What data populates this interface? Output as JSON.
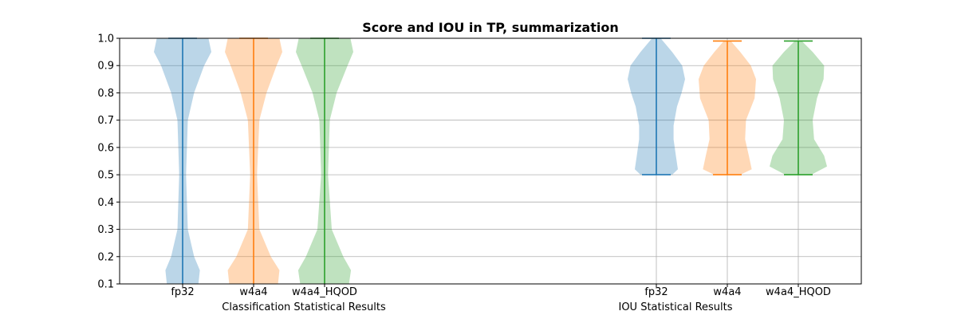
{
  "chart_data": {
    "type": "violin",
    "title": "Score and IOU in TP, summarization",
    "ylim": [
      0.1,
      1.0
    ],
    "yticks": [
      "0.1",
      "0.2",
      "0.3",
      "0.4",
      "0.5",
      "0.6",
      "0.7",
      "0.8",
      "0.9",
      "1.0"
    ],
    "grid": "y",
    "colors": {
      "fp32": "#1f77b4",
      "w4a4": "#ff7f0e",
      "w4a4_HQOD": "#2ca02c"
    },
    "groups": [
      {
        "label": "Classification Statistical Results",
        "violins": [
          {
            "category": "fp32",
            "min": 0.1,
            "max": 1.0,
            "density": [
              [
                0.1,
                0.55
              ],
              [
                0.15,
                0.6
              ],
              [
                0.2,
                0.4
              ],
              [
                0.3,
                0.18
              ],
              [
                0.5,
                0.12
              ],
              [
                0.7,
                0.18
              ],
              [
                0.8,
                0.4
              ],
              [
                0.9,
                0.75
              ],
              [
                0.95,
                1.0
              ],
              [
                1.0,
                0.9
              ]
            ]
          },
          {
            "category": "w4a4",
            "min": 0.1,
            "max": 1.0,
            "density": [
              [
                0.1,
                0.85
              ],
              [
                0.15,
                0.9
              ],
              [
                0.2,
                0.6
              ],
              [
                0.3,
                0.2
              ],
              [
                0.5,
                0.12
              ],
              [
                0.7,
                0.2
              ],
              [
                0.8,
                0.45
              ],
              [
                0.9,
                0.8
              ],
              [
                0.95,
                1.0
              ],
              [
                1.0,
                0.9
              ]
            ]
          },
          {
            "category": "w4a4_HQOD",
            "min": 0.1,
            "max": 1.0,
            "density": [
              [
                0.1,
                0.85
              ],
              [
                0.15,
                0.92
              ],
              [
                0.2,
                0.65
              ],
              [
                0.3,
                0.25
              ],
              [
                0.5,
                0.12
              ],
              [
                0.7,
                0.18
              ],
              [
                0.8,
                0.42
              ],
              [
                0.9,
                0.8
              ],
              [
                0.95,
                1.0
              ],
              [
                1.0,
                0.9
              ]
            ]
          }
        ]
      },
      {
        "label": "IOU Statistical Results",
        "violins": [
          {
            "category": "fp32",
            "min": 0.5,
            "max": 1.0,
            "density": [
              [
                0.5,
                0.55
              ],
              [
                0.52,
                0.75
              ],
              [
                0.57,
                0.68
              ],
              [
                0.63,
                0.6
              ],
              [
                0.68,
                0.6
              ],
              [
                0.75,
                0.72
              ],
              [
                0.8,
                0.88
              ],
              [
                0.85,
                1.0
              ],
              [
                0.9,
                0.9
              ],
              [
                0.95,
                0.55
              ],
              [
                1.0,
                0.15
              ]
            ]
          },
          {
            "category": "w4a4",
            "min": 0.5,
            "max": 0.99,
            "density": [
              [
                0.5,
                0.45
              ],
              [
                0.52,
                0.85
              ],
              [
                0.57,
                0.75
              ],
              [
                0.63,
                0.62
              ],
              [
                0.7,
                0.65
              ],
              [
                0.78,
                0.95
              ],
              [
                0.85,
                1.0
              ],
              [
                0.9,
                0.82
              ],
              [
                0.95,
                0.45
              ],
              [
                0.99,
                0.12
              ]
            ]
          },
          {
            "category": "w4a4_HQOD",
            "min": 0.5,
            "max": 0.99,
            "density": [
              [
                0.5,
                0.45
              ],
              [
                0.53,
                1.0
              ],
              [
                0.57,
                0.9
              ],
              [
                0.63,
                0.55
              ],
              [
                0.7,
                0.5
              ],
              [
                0.78,
                0.65
              ],
              [
                0.85,
                0.88
              ],
              [
                0.9,
                0.9
              ],
              [
                0.95,
                0.5
              ],
              [
                0.99,
                0.12
              ]
            ]
          }
        ]
      }
    ]
  }
}
